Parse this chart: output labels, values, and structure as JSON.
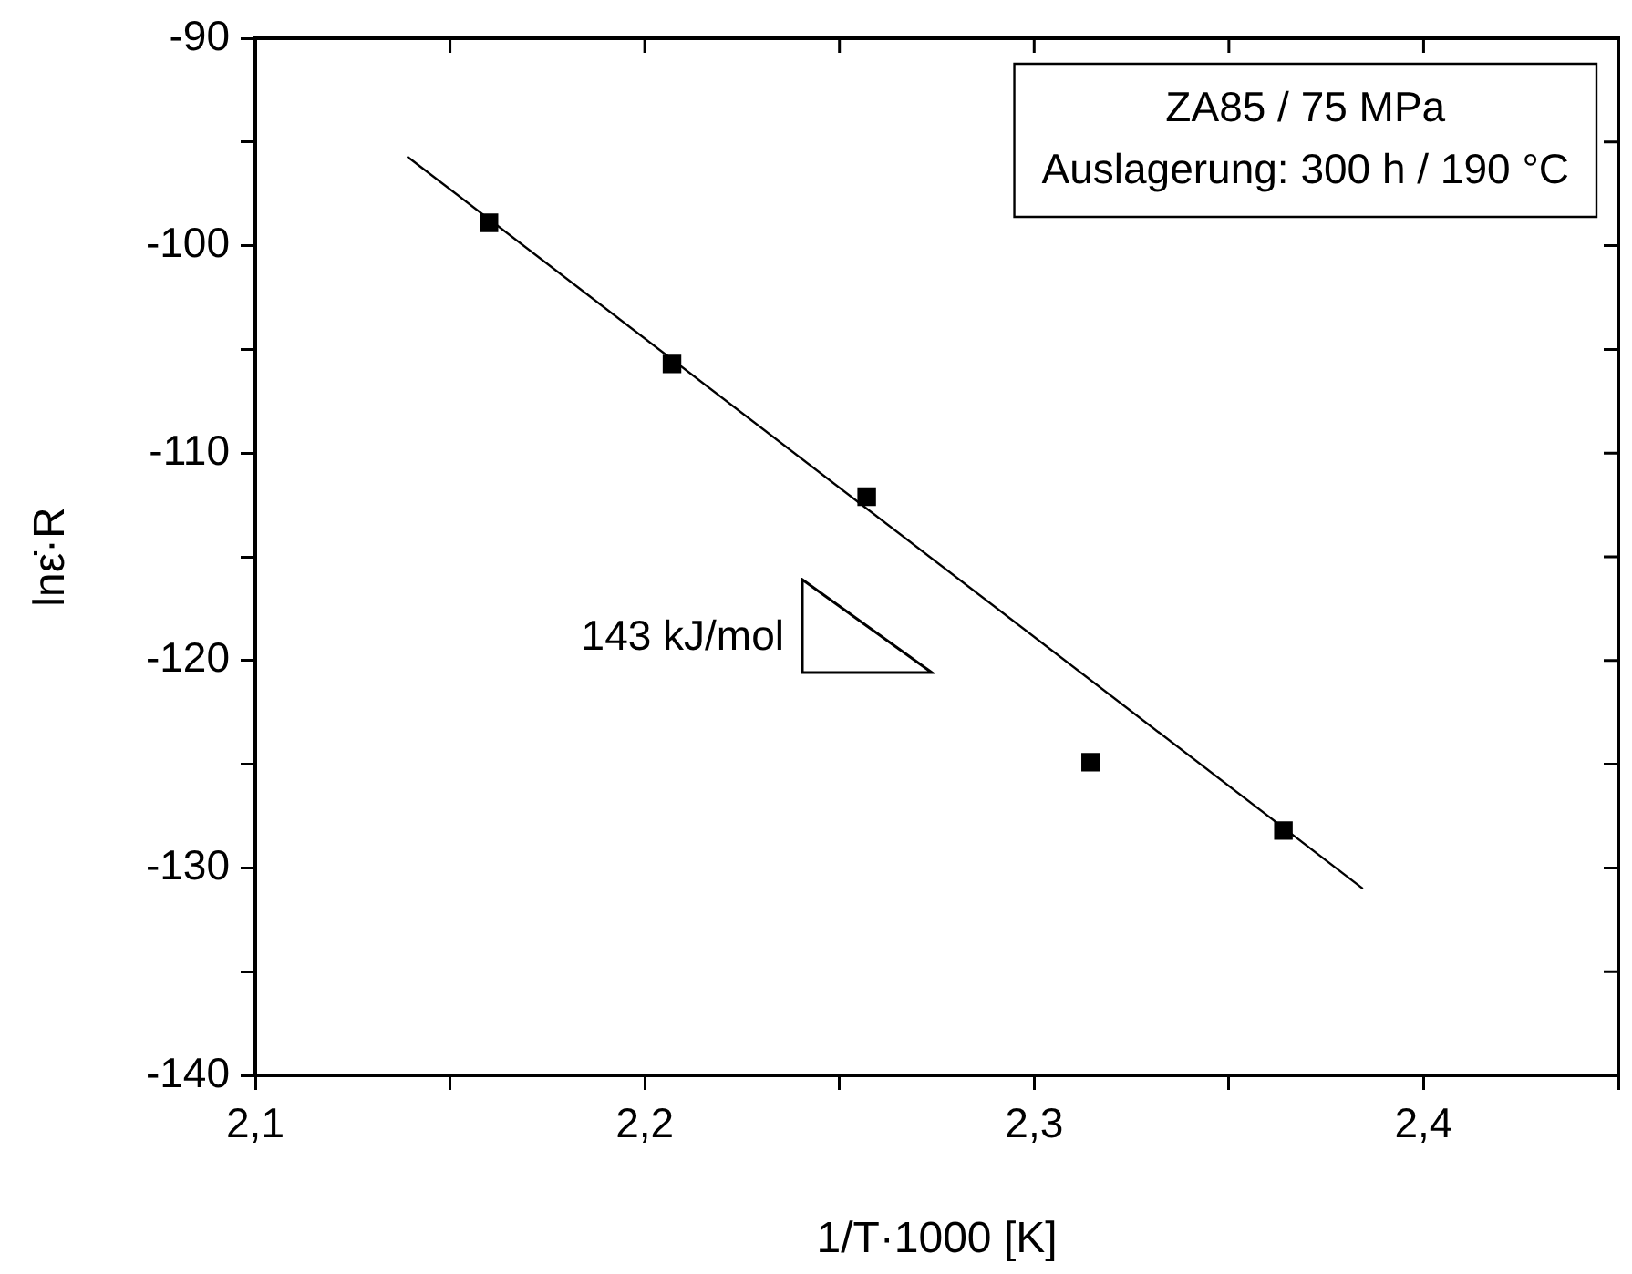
{
  "chart_data": {
    "type": "scatter",
    "xlabel": "1/T·1000 [K]",
    "ylabel": "lnε̇·R",
    "annotations": [
      "ZA85 / 75 MPa",
      "Auslagerung: 300 h / 190 °C",
      "143 kJ/mol"
    ],
    "series": [
      {
        "color": "#000000",
        "marker": "square",
        "x": [
          2.16,
          2.207,
          2.257,
          2.3145,
          2.364
        ],
        "values": [
          -98.9,
          -105.7,
          -112.1,
          -124.9,
          -128.2
        ]
      },
      {
        "type": "line",
        "color": "#000000",
        "x": [
          2.139,
          2.3844
        ],
        "values": [
          -95.7,
          -131.0
        ]
      }
    ],
    "xlim": [
      2.1,
      2.45
    ],
    "xticks": [
      {
        "value": 2.1,
        "label": "2,1"
      },
      {
        "value": 2.15,
        "label": null
      },
      {
        "value": 2.2,
        "label": "2,2"
      },
      {
        "value": 2.25,
        "label": null
      },
      {
        "value": 2.3,
        "label": "2,3"
      },
      {
        "value": 2.35,
        "label": null
      },
      {
        "value": 2.4,
        "label": "2,4"
      },
      {
        "value": 2.45,
        "label": null
      }
    ],
    "ylim": [
      -140,
      -90
    ],
    "yticks": [
      -140,
      {
        "value": -135,
        "label": null
      },
      -130,
      {
        "value": -125,
        "label": null
      },
      -120,
      {
        "value": -115,
        "label": null
      },
      -110,
      {
        "value": -105,
        "label": null
      },
      -100,
      {
        "value": -95,
        "label": null
      },
      -90
    ],
    "grid": false,
    "legend": false
  }
}
